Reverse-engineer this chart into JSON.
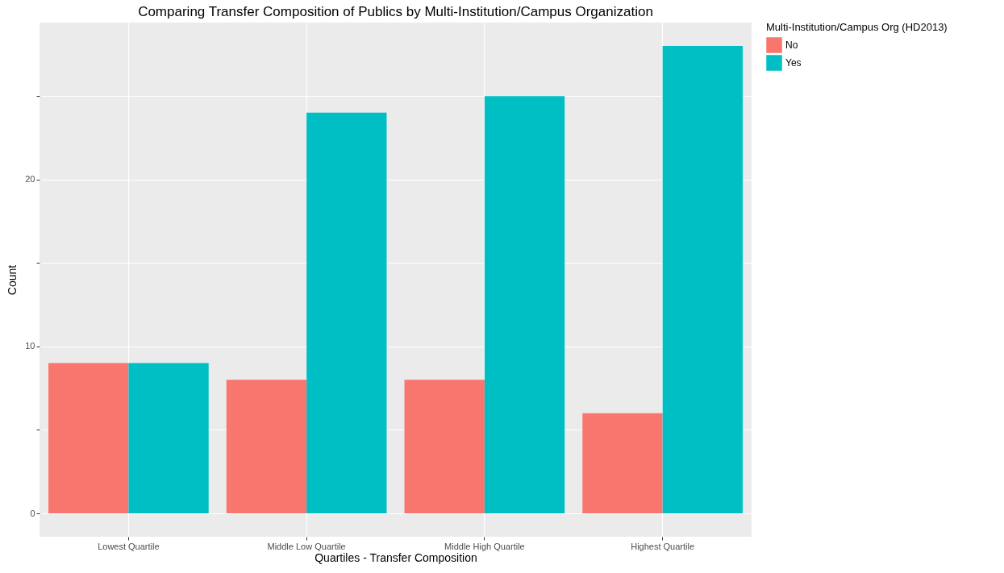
{
  "chart_data": {
    "type": "bar",
    "title": "Comparing Transfer Composition of Publics by Multi-Institution/Campus Organization",
    "xlabel": "Quartiles - Transfer Composition",
    "ylabel": "Count",
    "legend_title": "Multi-Institution/Campus Org (HD2013)",
    "categories": [
      "Lowest Quartile",
      "Middle Low Quartile",
      "Middle High Quartile",
      "Highest Quartile"
    ],
    "series": [
      {
        "name": "No",
        "color": "#f8766d",
        "values": [
          9,
          8,
          8,
          6
        ]
      },
      {
        "name": "Yes",
        "color": "#00bfc4",
        "values": [
          9,
          24,
          25,
          28
        ]
      }
    ],
    "ylim": [
      -1.4,
      29.4
    ],
    "yticks": [
      0,
      {
        "value": 5,
        "label": null
      },
      10,
      {
        "value": 15,
        "label": null
      },
      20,
      {
        "value": 25,
        "label": null
      }
    ],
    "grid": true,
    "legend": "right"
  }
}
